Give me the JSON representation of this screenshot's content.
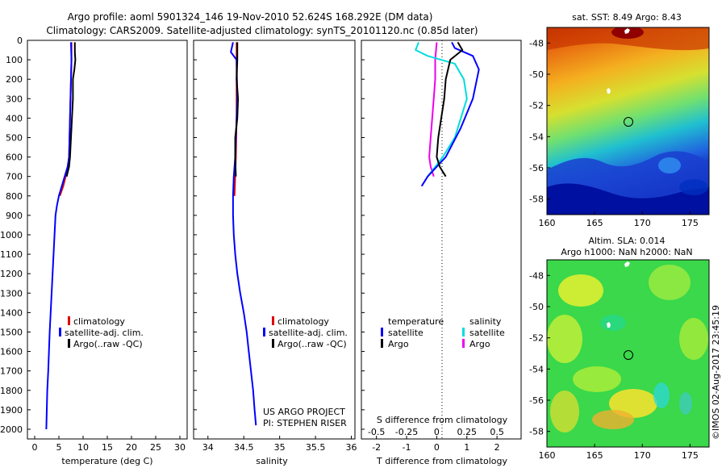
{
  "header": {
    "line1": "Argo profile: aoml 5901324_146 19-Nov-2010 52.624S 168.292E (DM data)",
    "line2": "Climatology: CARS2009. Satellite-adjusted climatology: synTS_20101120.nc (0.85d later)"
  },
  "colors": {
    "climatology": "#e00000",
    "satellite": "#0000ff",
    "argo": "#000000",
    "salinity_satellite": "#00dddd",
    "salinity_argo": "#ee00ee",
    "zero_line": "#000000"
  },
  "chart_data": [
    {
      "name": "temperature-panel",
      "type": "line",
      "xlabel": "temperature (deg C)",
      "ylabel": "",
      "xlim": [
        -1.5,
        31.5
      ],
      "ylim": [
        2050,
        0
      ],
      "x_ticks": [
        0,
        5,
        10,
        15,
        20,
        25,
        30
      ],
      "x_tick_labels": [
        "0",
        "5",
        "10",
        "15",
        "20",
        "25",
        "30"
      ],
      "y_ticks": [
        0,
        100,
        200,
        300,
        400,
        500,
        600,
        700,
        800,
        900,
        1000,
        1100,
        1200,
        1300,
        1400,
        1500,
        1600,
        1700,
        1800,
        1900,
        2000
      ],
      "y_tick_labels": [
        "0",
        "100",
        "200",
        "300",
        "400",
        "500",
        "600",
        "700",
        "800",
        "900",
        "1000",
        "1100",
        "1200",
        "1300",
        "1400",
        "1500",
        "1600",
        "1700",
        "1800",
        "1900",
        "2000"
      ],
      "legend_position": "bottom-center",
      "legend": [
        {
          "label": "climatology",
          "color_key": "climatology"
        },
        {
          "label": "satellite-adj. clim.",
          "color_key": "satellite"
        },
        {
          "label": "Argo(..raw -QC)",
          "color_key": "argo"
        }
      ],
      "series": [
        {
          "legend_index": 0,
          "color_key": "climatology",
          "points": [
            [
              7.6,
              10
            ],
            [
              7.6,
              100
            ],
            [
              7.5,
              200
            ],
            [
              7.4,
              300
            ],
            [
              7.3,
              400
            ],
            [
              7.2,
              500
            ],
            [
              7.1,
              600
            ],
            [
              6.9,
              650
            ],
            [
              6.4,
              700
            ],
            [
              5.9,
              750
            ],
            [
              5.2,
              800
            ]
          ]
        },
        {
          "legend_index": 1,
          "color_key": "satellite",
          "points": [
            [
              7.5,
              10
            ],
            [
              7.6,
              100
            ],
            [
              7.5,
              200
            ],
            [
              7.4,
              300
            ],
            [
              7.3,
              400
            ],
            [
              7.2,
              500
            ],
            [
              7.1,
              600
            ],
            [
              6.8,
              650
            ],
            [
              6.2,
              700
            ],
            [
              5.6,
              750
            ],
            [
              5.0,
              800
            ],
            [
              4.6,
              850
            ],
            [
              4.3,
              900
            ],
            [
              4.1,
              1000
            ],
            [
              3.9,
              1100
            ],
            [
              3.7,
              1200
            ],
            [
              3.5,
              1300
            ],
            [
              3.3,
              1400
            ],
            [
              3.1,
              1500
            ],
            [
              2.95,
              1600
            ],
            [
              2.8,
              1700
            ],
            [
              2.6,
              1800
            ],
            [
              2.5,
              1900
            ],
            [
              2.4,
              2000
            ]
          ]
        },
        {
          "legend_index": 2,
          "color_key": "argo",
          "points": [
            [
              8.3,
              10
            ],
            [
              8.3,
              60
            ],
            [
              8.4,
              100
            ],
            [
              8.2,
              150
            ],
            [
              7.9,
              200
            ],
            [
              7.9,
              300
            ],
            [
              7.7,
              400
            ],
            [
              7.5,
              500
            ],
            [
              7.3,
              600
            ],
            [
              7.1,
              650
            ],
            [
              6.6,
              700
            ]
          ]
        }
      ]
    },
    {
      "name": "salinity-panel",
      "type": "line",
      "xlabel": "salinity",
      "ylabel": "",
      "xlim": [
        33.8,
        36.05
      ],
      "ylim": [
        2050,
        0
      ],
      "x_ticks": [
        34,
        34.5,
        35,
        35.5,
        36
      ],
      "x_tick_labels": [
        "34",
        "34.5",
        "35",
        "35.5",
        "36"
      ],
      "legend_position": "bottom-center",
      "legend": [
        {
          "label": "climatology",
          "color_key": "climatology"
        },
        {
          "label": "satellite-adj. clim.",
          "color_key": "satellite"
        },
        {
          "label": "Argo(..raw -QC)",
          "color_key": "argo"
        }
      ],
      "annotations": [
        "US ARGO PROJECT",
        "PI: STEPHEN RISER"
      ],
      "series": [
        {
          "legend_index": 0,
          "color_key": "climatology",
          "points": [
            [
              34.4,
              10
            ],
            [
              34.4,
              200
            ],
            [
              34.4,
              400
            ],
            [
              34.39,
              600
            ],
            [
              34.38,
              700
            ],
            [
              34.37,
              800
            ]
          ]
        },
        {
          "legend_index": 1,
          "color_key": "satellite",
          "points": [
            [
              34.35,
              10
            ],
            [
              34.32,
              60
            ],
            [
              34.4,
              100
            ],
            [
              34.41,
              300
            ],
            [
              34.39,
              500
            ],
            [
              34.38,
              600
            ],
            [
              34.36,
              700
            ],
            [
              34.35,
              800
            ],
            [
              34.35,
              900
            ],
            [
              34.36,
              1000
            ],
            [
              34.38,
              1100
            ],
            [
              34.41,
              1200
            ],
            [
              34.45,
              1300
            ],
            [
              34.5,
              1400
            ],
            [
              34.54,
              1500
            ],
            [
              34.57,
              1600
            ],
            [
              34.6,
              1700
            ],
            [
              34.63,
              1800
            ],
            [
              34.65,
              1900
            ],
            [
              34.67,
              1980
            ]
          ]
        },
        {
          "legend_index": 2,
          "color_key": "argo",
          "points": [
            [
              34.41,
              10
            ],
            [
              34.41,
              100
            ],
            [
              34.4,
              200
            ],
            [
              34.42,
              300
            ],
            [
              34.41,
              400
            ],
            [
              34.38,
              500
            ],
            [
              34.38,
              600
            ],
            [
              34.39,
              700
            ]
          ]
        }
      ]
    },
    {
      "name": "difference-panel",
      "type": "line",
      "xlabel": "T difference from climatology",
      "xlabel_top": "S difference from climatology",
      "xlim": [
        -2.5,
        2.8
      ],
      "ylim": [
        2050,
        0
      ],
      "x_ticks": [
        -2,
        -1,
        0,
        1,
        2
      ],
      "x_tick_labels": [
        "-2",
        "-1",
        "0",
        "1",
        "2"
      ],
      "s_tick_labels": [
        "-0.5",
        "-0.25",
        "0",
        "0.25",
        "0.5"
      ],
      "legend_position": "bottom",
      "legend_headers": [
        "temperature",
        "salinity"
      ],
      "legend": [
        {
          "label": "satellite",
          "color_key": "satellite",
          "column": 0
        },
        {
          "label": "Argo",
          "color_key": "argo",
          "column": 0
        },
        {
          "label": "satellite",
          "color_key": "salinity_satellite",
          "column": 1
        },
        {
          "label": "Argo",
          "color_key": "salinity_argo",
          "column": 1
        }
      ],
      "series": [
        {
          "color_key": "salinity_argo",
          "points": [
            [
              0.0,
              10
            ],
            [
              -0.05,
              100
            ],
            [
              -0.05,
              200
            ],
            [
              -0.1,
              300
            ],
            [
              -0.15,
              400
            ],
            [
              -0.2,
              500
            ],
            [
              -0.25,
              600
            ],
            [
              -0.2,
              650
            ],
            [
              -0.1,
              700
            ]
          ]
        },
        {
          "color_key": "salinity_satellite",
          "points": [
            [
              -0.6,
              10
            ],
            [
              -0.7,
              50
            ],
            [
              -0.3,
              80
            ],
            [
              0.6,
              120
            ],
            [
              0.9,
              200
            ],
            [
              1.0,
              300
            ],
            [
              0.8,
              400
            ],
            [
              0.6,
              500
            ],
            [
              0.2,
              600
            ],
            [
              -0.3,
              700
            ]
          ]
        },
        {
          "color_key": "satellite",
          "points": [
            [
              0.5,
              10
            ],
            [
              0.6,
              40
            ],
            [
              1.2,
              80
            ],
            [
              1.4,
              150
            ],
            [
              1.2,
              300
            ],
            [
              0.8,
              450
            ],
            [
              0.3,
              600
            ],
            [
              -0.3,
              700
            ],
            [
              -0.5,
              750
            ]
          ]
        },
        {
          "color_key": "argo",
          "points": [
            [
              0.7,
              10
            ],
            [
              0.85,
              50
            ],
            [
              0.45,
              100
            ],
            [
              0.3,
              200
            ],
            [
              0.25,
              300
            ],
            [
              0.15,
              400
            ],
            [
              0.05,
              500
            ],
            [
              0.0,
              600
            ],
            [
              0.1,
              650
            ],
            [
              0.3,
              700
            ]
          ]
        }
      ]
    },
    {
      "name": "sst-map",
      "type": "heatmap",
      "title": "sat. SST: 8.49 Argo: 8.43",
      "xlim": [
        160,
        177
      ],
      "ylim": [
        -59,
        -47
      ],
      "x_ticks": [
        160,
        165,
        170,
        175
      ],
      "x_tick_labels": [
        "160",
        "165",
        "170",
        "175"
      ],
      "y_ticks": [
        -48,
        -50,
        -52,
        -54,
        -56,
        -58
      ],
      "y_tick_labels": [
        "-48",
        "-50",
        "-52",
        "-54",
        "-56",
        "-58"
      ],
      "marker": [
        168.29,
        -52.62
      ]
    },
    {
      "name": "sla-map",
      "type": "heatmap",
      "title": "Altim. SLA: 0.014",
      "subtitle": "Argo h1000: NaN h2000: NaN",
      "xlim": [
        160,
        177
      ],
      "ylim": [
        -59,
        -47
      ],
      "x_ticks": [
        160,
        165,
        170,
        175
      ],
      "x_tick_labels": [
        "160",
        "165",
        "170",
        "175"
      ],
      "y_ticks": [
        -48,
        -50,
        -52,
        -54,
        -56,
        -58
      ],
      "y_tick_labels": [
        "-48",
        "-50",
        "-52",
        "-54",
        "-56",
        "-58"
      ],
      "marker": [
        168.29,
        -52.62
      ]
    }
  ],
  "credit": "©IMOS 02-Aug-2017 23:45:19"
}
